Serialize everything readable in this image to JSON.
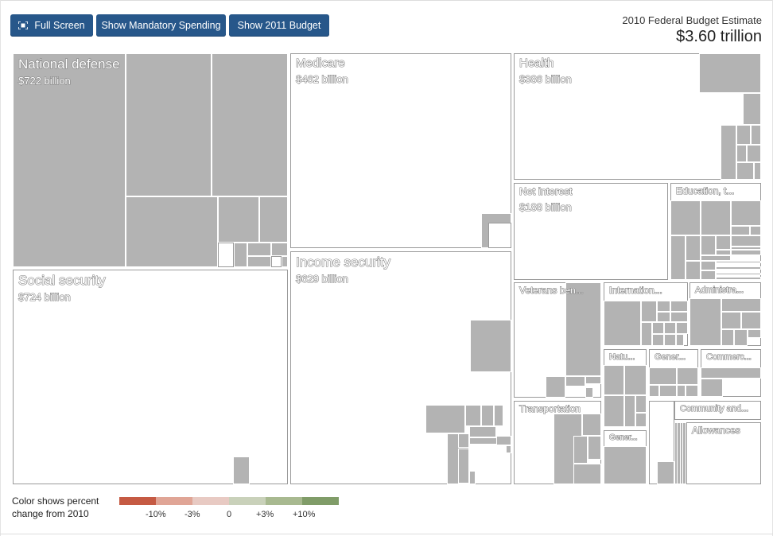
{
  "toolbar": {
    "fullscreen_label": "Full Screen",
    "mandatory_label": "Show Mandatory Spending",
    "budget2011_label": "Show 2011 Budget"
  },
  "header": {
    "title": "2010 Federal Budget Estimate",
    "total": "$3.60 trillion"
  },
  "legend": {
    "line1": "Color shows percent",
    "line2": "change from 2010",
    "colors": [
      "#c55a43",
      "#e0a596",
      "#e8cac3",
      "#c9d1ba",
      "#a8b990",
      "#809c68"
    ],
    "ticks": [
      "-10%",
      "-3%",
      "0",
      "+3%",
      "+10%"
    ]
  },
  "chart_data": {
    "type": "treemap",
    "title": "2010 Federal Budget Estimate",
    "total": "$3.60 trillion",
    "categories": [
      {
        "name": "National defense",
        "value_label": "$722 billion",
        "value": 722
      },
      {
        "name": "Social security",
        "value_label": "$724 billion",
        "value": 724
      },
      {
        "name": "Medicare",
        "value_label": "$462 billion",
        "value": 462
      },
      {
        "name": "Income security",
        "value_label": "$629 billion",
        "value": 629
      },
      {
        "name": "Health",
        "value_label": "$386 billion",
        "value": 386
      },
      {
        "name": "Net interest",
        "value_label": "$188 billion",
        "value": 188
      },
      {
        "name": "Education, trainin...",
        "value_label": "",
        "value": null
      },
      {
        "name": "Veterans benefit...",
        "value_label": "",
        "value": null
      },
      {
        "name": "International aff...",
        "value_label": "",
        "value": null
      },
      {
        "name": "Administration ...",
        "value_label": "",
        "value": null
      },
      {
        "name": "Natural...",
        "value_label": "",
        "value": null
      },
      {
        "name": "General...",
        "value_label": "",
        "value": null
      },
      {
        "name": "Commerce ...",
        "value_label": "",
        "value": null
      },
      {
        "name": "Transportation",
        "value_label": "",
        "value": null
      },
      {
        "name": "General...",
        "value_label": "",
        "value": null
      },
      {
        "name": "Community and re...",
        "value_label": "",
        "value": null
      },
      {
        "name": "Allowances",
        "value_label": "",
        "value": null
      }
    ]
  }
}
